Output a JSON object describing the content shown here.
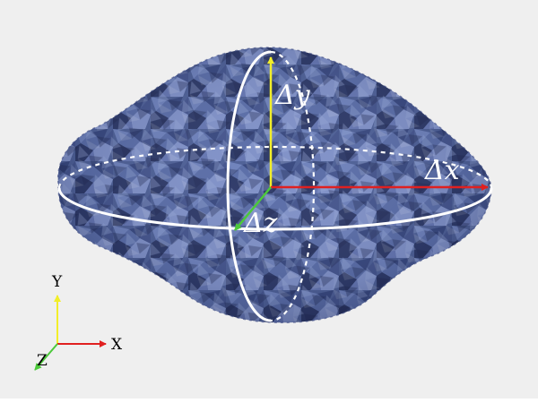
{
  "labels": {
    "delta_y": "Δy",
    "delta_x": "Δx",
    "delta_z": "Δz"
  },
  "triad": {
    "y": "Y",
    "x": "X",
    "z": "Z"
  },
  "colors": {
    "background": "#efefef",
    "shape_fill": "#4f6197",
    "shape_dark": "#2e3a66",
    "shape_light": "#8a9cd0",
    "x_axis": "#e02020",
    "y_axis": "#f2ee2a",
    "z_axis": "#4cc93a",
    "label_white": "#ffffff",
    "label_black": "#000000",
    "ellipse": "#ffffff"
  }
}
